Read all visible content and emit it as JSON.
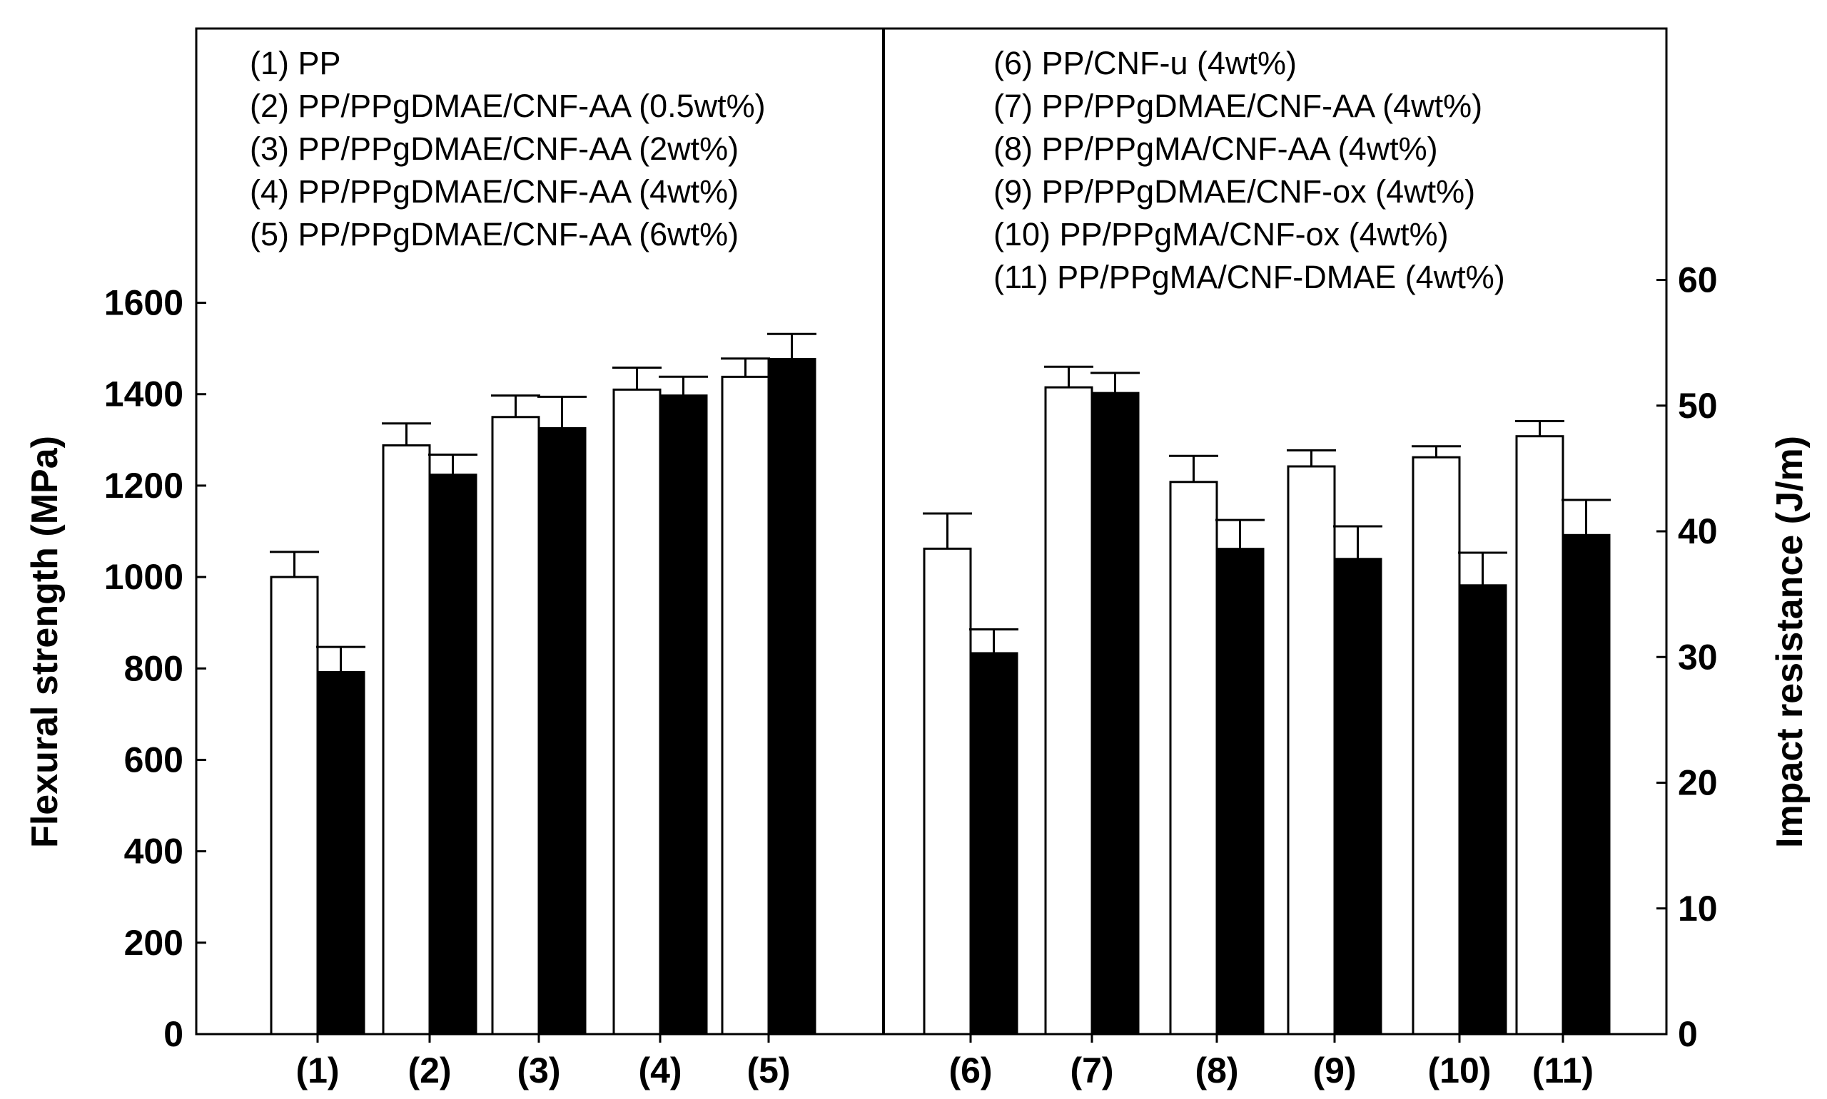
{
  "chart_data": {
    "type": "bar",
    "categories": [
      "(1)",
      "(2)",
      "(3)",
      "(4)",
      "(5)",
      "(6)",
      "(7)",
      "(8)",
      "(9)",
      "(10)",
      "(11)"
    ],
    "series": [
      {
        "axis": "left",
        "fill": "#ffffff",
        "values": [
          1000,
          1288,
          1350,
          1410,
          1438,
          1062,
          1415,
          1208,
          1242,
          1262,
          1308
        ],
        "errors": [
          55,
          48,
          47,
          48,
          40,
          77,
          45,
          57,
          35,
          24,
          33
        ]
      },
      {
        "axis": "right",
        "fill": "#000000",
        "values": [
          28.8,
          44.5,
          48.2,
          50.8,
          53.7,
          30.3,
          51.0,
          38.6,
          37.8,
          35.7,
          39.7
        ],
        "errors": [
          2.0,
          1.6,
          2.5,
          1.5,
          2.0,
          1.9,
          1.6,
          2.3,
          2.6,
          2.6,
          2.8
        ]
      }
    ],
    "ylabel": "Flexural strength (MPa)",
    "ylabel_right": "Impact resistance (J/m)",
    "ylim": [
      0,
      2200
    ],
    "ylim_right": [
      0,
      80
    ],
    "yticks": [
      0,
      200,
      400,
      600,
      800,
      1000,
      1200,
      1400,
      1600
    ],
    "yticks_right": [
      0,
      10,
      20,
      30,
      40,
      50,
      60
    ],
    "yticks_right_labels": [
      "0",
      "10",
      "20",
      "30",
      "40",
      "50",
      "60"
    ],
    "legend_left": [
      "(1) PP",
      "(2) PP/PPgDMAE/CNF-AA (0.5wt%)",
      "(3) PP/PPgDMAE/CNF-AA (2wt%)",
      "(4) PP/PPgDMAE/CNF-AA (4wt%)",
      "(5) PP/PPgDMAE/CNF-AA (6wt%)"
    ],
    "legend_right": [
      "(6) PP/CNF-u (4wt%)",
      "(7) PP/PPgDMAE/CNF-AA (4wt%)",
      "(8) PP/PPgMA/CNF-AA (4wt%)",
      "(9) PP/PPgDMAE/CNF-ox (4wt%)",
      "(10) PP/PPgMA/CNF-ox (4wt%)",
      "(11) PP/PPgMA/CNF-DMAE (4wt%)"
    ],
    "grid": false,
    "divider_after_category": "(5)"
  }
}
